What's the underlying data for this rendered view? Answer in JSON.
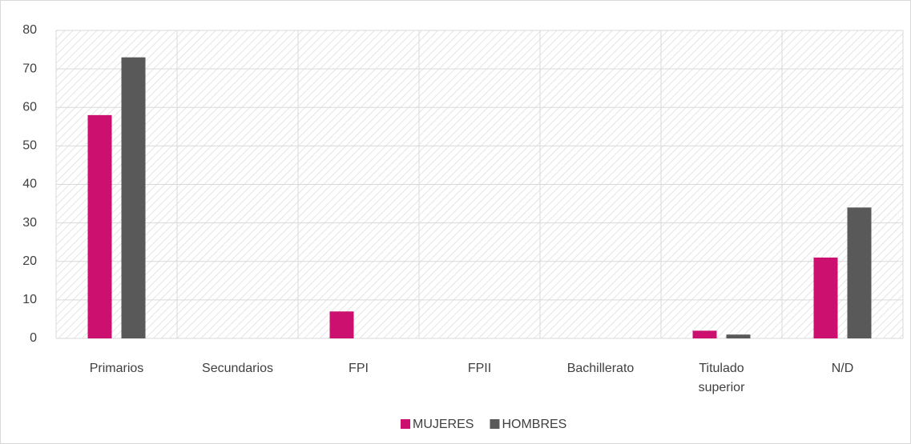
{
  "chart_data": {
    "type": "bar",
    "categories": [
      "Primarios",
      "Secundarios",
      "FPI",
      "FPII",
      "Bachillerato",
      "Titulado superior",
      "N/D"
    ],
    "series": [
      {
        "name": "MUJERES",
        "color": "#cc1070",
        "values": [
          58,
          0,
          7,
          0,
          0,
          2,
          21
        ]
      },
      {
        "name": "HOMBRES",
        "color": "#595959",
        "values": [
          73,
          0,
          0,
          0,
          0,
          1,
          34
        ]
      }
    ],
    "ylim": [
      0,
      80
    ],
    "yticks": [
      0,
      10,
      20,
      30,
      40,
      50,
      60,
      70,
      80
    ],
    "grid": true,
    "legend": "bottom"
  }
}
